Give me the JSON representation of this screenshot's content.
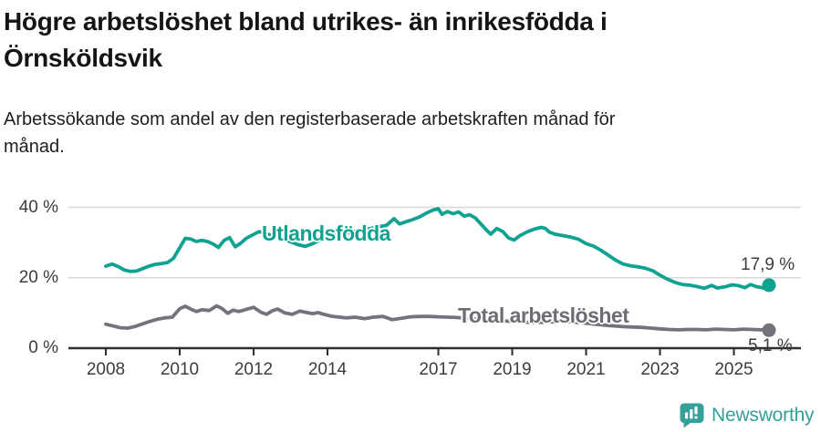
{
  "title": {
    "line1": "Högre arbetslöshet bland utrikes- än inrikesfödda i",
    "line2": "Örnsköldsvik"
  },
  "subtitle": {
    "line1": "Arbetssökande som andel av den registerbaserade arbetskraften månad för",
    "line2": "månad."
  },
  "chart_data": {
    "type": "line",
    "x_unit": "year (monthly data)",
    "xlim": [
      2007.8,
      2026.3
    ],
    "ylim": [
      0,
      43
    ],
    "grid": "horizontal",
    "y_ticks": [
      {
        "value": 0,
        "label": "0 %"
      },
      {
        "value": 20,
        "label": "20 %"
      },
      {
        "value": 40,
        "label": "40 %"
      }
    ],
    "x_ticks": [
      {
        "value": 2008,
        "label": "2008"
      },
      {
        "value": 2010,
        "label": "2010"
      },
      {
        "value": 2012,
        "label": "2012"
      },
      {
        "value": 2014,
        "label": "2014"
      },
      {
        "value": 2017,
        "label": "2017"
      },
      {
        "value": 2019,
        "label": "2019"
      },
      {
        "value": 2021,
        "label": "2021"
      },
      {
        "value": 2023,
        "label": "2023"
      },
      {
        "value": 2025,
        "label": "2025"
      }
    ],
    "series": [
      {
        "key": "utlandsfodda",
        "name": "Utlandsfödda",
        "color": "#10a291",
        "end_label": "17,9 %",
        "end_value": 17.9,
        "points": [
          [
            2008.0,
            23.3
          ],
          [
            2008.17,
            23.9
          ],
          [
            2008.33,
            23.2
          ],
          [
            2008.5,
            22.2
          ],
          [
            2008.67,
            21.8
          ],
          [
            2008.83,
            21.9
          ],
          [
            2009.0,
            22.6
          ],
          [
            2009.17,
            23.3
          ],
          [
            2009.33,
            23.8
          ],
          [
            2009.5,
            24.0
          ],
          [
            2009.67,
            24.3
          ],
          [
            2009.83,
            25.5
          ],
          [
            2010.0,
            28.5
          ],
          [
            2010.15,
            31.2
          ],
          [
            2010.3,
            31.0
          ],
          [
            2010.45,
            30.3
          ],
          [
            2010.6,
            30.6
          ],
          [
            2010.75,
            30.3
          ],
          [
            2010.9,
            29.6
          ],
          [
            2011.05,
            28.6
          ],
          [
            2011.2,
            30.6
          ],
          [
            2011.35,
            31.4
          ],
          [
            2011.5,
            28.8
          ],
          [
            2011.65,
            29.8
          ],
          [
            2011.8,
            31.2
          ],
          [
            2012.0,
            32.3
          ],
          [
            2012.15,
            33.1
          ],
          [
            2012.3,
            32.7
          ],
          [
            2012.5,
            32.0
          ],
          [
            2012.7,
            31.3
          ],
          [
            2012.85,
            30.8
          ],
          [
            2013.0,
            30.2
          ],
          [
            2013.2,
            29.4
          ],
          [
            2013.4,
            28.9
          ],
          [
            2013.6,
            29.7
          ],
          [
            2013.8,
            30.7
          ],
          [
            2014.0,
            31.5
          ],
          [
            2014.25,
            32.1
          ],
          [
            2014.5,
            32.7
          ],
          [
            2014.75,
            33.2
          ],
          [
            2015.0,
            33.6
          ],
          [
            2015.2,
            34.1
          ],
          [
            2015.4,
            34.5
          ],
          [
            2015.6,
            34.9
          ],
          [
            2015.8,
            36.8
          ],
          [
            2015.95,
            35.3
          ],
          [
            2016.1,
            35.8
          ],
          [
            2016.3,
            36.5
          ],
          [
            2016.5,
            37.3
          ],
          [
            2016.7,
            38.5
          ],
          [
            2016.85,
            39.2
          ],
          [
            2017.0,
            39.6
          ],
          [
            2017.1,
            38.0
          ],
          [
            2017.25,
            38.8
          ],
          [
            2017.4,
            38.2
          ],
          [
            2017.55,
            38.7
          ],
          [
            2017.7,
            37.5
          ],
          [
            2017.85,
            37.9
          ],
          [
            2018.0,
            37.0
          ],
          [
            2018.15,
            35.3
          ],
          [
            2018.3,
            33.6
          ],
          [
            2018.42,
            32.4
          ],
          [
            2018.58,
            34.0
          ],
          [
            2018.75,
            33.1
          ],
          [
            2018.9,
            31.3
          ],
          [
            2019.05,
            30.7
          ],
          [
            2019.2,
            31.9
          ],
          [
            2019.4,
            33.0
          ],
          [
            2019.6,
            33.8
          ],
          [
            2019.78,
            34.3
          ],
          [
            2019.9,
            34.0
          ],
          [
            2020.0,
            33.0
          ],
          [
            2020.15,
            32.4
          ],
          [
            2020.35,
            32.0
          ],
          [
            2020.6,
            31.5
          ],
          [
            2020.8,
            30.9
          ],
          [
            2021.0,
            29.7
          ],
          [
            2021.2,
            29.0
          ],
          [
            2021.4,
            27.8
          ],
          [
            2021.6,
            26.4
          ],
          [
            2021.8,
            25.0
          ],
          [
            2022.0,
            23.9
          ],
          [
            2022.2,
            23.4
          ],
          [
            2022.4,
            23.1
          ],
          [
            2022.6,
            22.7
          ],
          [
            2022.8,
            22.0
          ],
          [
            2023.0,
            20.7
          ],
          [
            2023.2,
            19.6
          ],
          [
            2023.4,
            18.7
          ],
          [
            2023.6,
            18.1
          ],
          [
            2023.8,
            17.9
          ],
          [
            2024.0,
            17.5
          ],
          [
            2024.2,
            17.0
          ],
          [
            2024.4,
            17.8
          ],
          [
            2024.55,
            17.1
          ],
          [
            2024.75,
            17.4
          ],
          [
            2024.95,
            18.0
          ],
          [
            2025.1,
            17.8
          ],
          [
            2025.3,
            17.2
          ],
          [
            2025.45,
            18.1
          ],
          [
            2025.6,
            17.5
          ],
          [
            2025.8,
            17.1
          ],
          [
            2025.95,
            17.9
          ]
        ]
      },
      {
        "key": "total",
        "name": "Total arbetslöshet",
        "color": "#73737b",
        "end_label": "5,1 %",
        "end_value": 5.1,
        "points": [
          [
            2008.0,
            6.8
          ],
          [
            2008.2,
            6.3
          ],
          [
            2008.4,
            5.8
          ],
          [
            2008.6,
            5.7
          ],
          [
            2008.8,
            6.2
          ],
          [
            2009.0,
            6.9
          ],
          [
            2009.2,
            7.6
          ],
          [
            2009.4,
            8.2
          ],
          [
            2009.6,
            8.6
          ],
          [
            2009.8,
            8.8
          ],
          [
            2010.0,
            11.2
          ],
          [
            2010.15,
            11.9
          ],
          [
            2010.3,
            11.1
          ],
          [
            2010.45,
            10.4
          ],
          [
            2010.6,
            10.9
          ],
          [
            2010.8,
            10.7
          ],
          [
            2011.0,
            12.0
          ],
          [
            2011.15,
            11.2
          ],
          [
            2011.3,
            9.9
          ],
          [
            2011.45,
            10.8
          ],
          [
            2011.6,
            10.4
          ],
          [
            2011.8,
            11.0
          ],
          [
            2012.0,
            11.6
          ],
          [
            2012.2,
            10.2
          ],
          [
            2012.35,
            9.6
          ],
          [
            2012.5,
            10.6
          ],
          [
            2012.65,
            11.1
          ],
          [
            2012.85,
            10.0
          ],
          [
            2013.05,
            9.6
          ],
          [
            2013.25,
            10.5
          ],
          [
            2013.45,
            10.1
          ],
          [
            2013.6,
            9.8
          ],
          [
            2013.75,
            10.1
          ],
          [
            2013.9,
            9.6
          ],
          [
            2014.1,
            9.1
          ],
          [
            2014.25,
            8.9
          ],
          [
            2014.5,
            8.6
          ],
          [
            2014.75,
            8.8
          ],
          [
            2015.0,
            8.4
          ],
          [
            2015.25,
            8.8
          ],
          [
            2015.5,
            9.0
          ],
          [
            2015.75,
            8.1
          ],
          [
            2016.0,
            8.5
          ],
          [
            2016.25,
            8.9
          ],
          [
            2016.5,
            9.0
          ],
          [
            2016.75,
            9.0
          ],
          [
            2017.0,
            8.9
          ],
          [
            2017.25,
            8.8
          ],
          [
            2017.5,
            8.7
          ],
          [
            2017.75,
            8.5
          ],
          [
            2018.0,
            8.3
          ],
          [
            2018.33,
            8.0
          ],
          [
            2018.66,
            7.8
          ],
          [
            2019.0,
            7.6
          ],
          [
            2019.33,
            7.4
          ],
          [
            2019.66,
            7.3
          ],
          [
            2020.0,
            7.4
          ],
          [
            2020.33,
            7.7
          ],
          [
            2020.66,
            7.4
          ],
          [
            2021.0,
            7.1
          ],
          [
            2021.33,
            6.7
          ],
          [
            2021.66,
            6.4
          ],
          [
            2022.0,
            6.1
          ],
          [
            2022.25,
            6.0
          ],
          [
            2022.5,
            5.9
          ],
          [
            2022.75,
            5.7
          ],
          [
            2023.0,
            5.5
          ],
          [
            2023.25,
            5.3
          ],
          [
            2023.5,
            5.2
          ],
          [
            2023.75,
            5.3
          ],
          [
            2024.0,
            5.3
          ],
          [
            2024.25,
            5.2
          ],
          [
            2024.5,
            5.4
          ],
          [
            2024.75,
            5.3
          ],
          [
            2025.0,
            5.2
          ],
          [
            2025.25,
            5.4
          ],
          [
            2025.5,
            5.3
          ],
          [
            2025.75,
            5.2
          ],
          [
            2025.95,
            5.1
          ]
        ]
      }
    ]
  },
  "branding": {
    "logo_text": "Newsworthy",
    "logo_color": "#35a098"
  },
  "colors": {
    "axis": "#2e2e2e",
    "grid": "#d9d9d9",
    "tick_text": "#3c3c3c"
  }
}
